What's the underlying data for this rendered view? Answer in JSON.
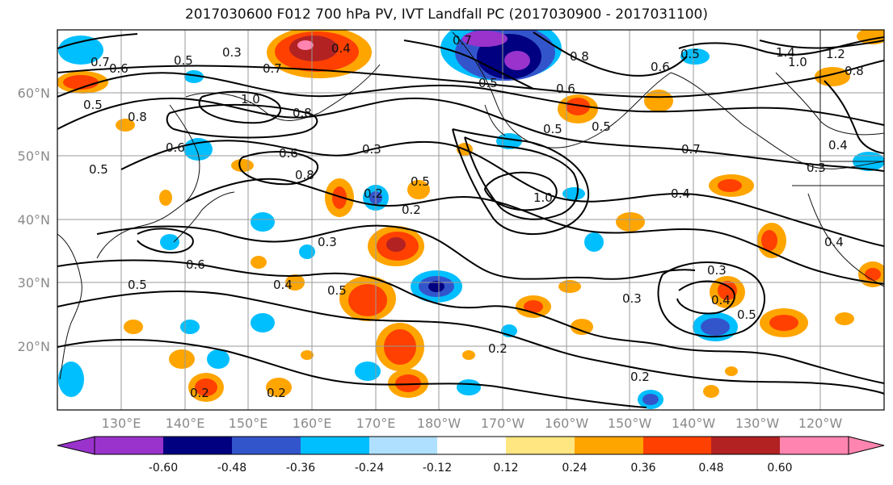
{
  "title": "2017030600 F012 700 hPa PV, IVT Landfall PC (2017030900 - 2017031100)",
  "lat_labels": [
    "60°N",
    "50°N",
    "40°N",
    "30°N",
    "20°N"
  ],
  "lon_labels": [
    "130°E",
    "140°E",
    "150°E",
    "160°E",
    "170°E",
    "180°W",
    "170°W",
    "160°W",
    "150°W",
    "140°W",
    "130°W",
    "120°W"
  ],
  "colorbar": {
    "colors": [
      "#9933cc",
      "#000080",
      "#3355cc",
      "#00bfff",
      "#b0e0ff",
      "#ffffff",
      "#ffe680",
      "#ffa500",
      "#ff4000",
      "#b22222",
      "#ff85b0"
    ],
    "tick_labels": [
      "-0.60",
      "-0.48",
      "-0.36",
      "-0.24",
      "-0.12",
      "0.12",
      "0.24",
      "0.36",
      "0.48",
      "0.60"
    ]
  },
  "contour_labels": [
    "0.7",
    "0.6",
    "0.5",
    "0.3",
    "0.7",
    "0.4",
    "0.7",
    "0.8",
    "0.6",
    "0.5",
    "1.4",
    "1.2",
    "1.0",
    "0.8",
    "0.5",
    "0.8",
    "1.0",
    "0.8",
    "0.5",
    "0.5",
    "0.6",
    "0.5",
    "0.6",
    "0.6",
    "0.4",
    "0.3",
    "0.7",
    "0.4",
    "0.3",
    "0.5",
    "0.8",
    "0.2",
    "0.2",
    "0.5",
    "1.0",
    "0.3",
    "0.4",
    "0.6",
    "0.5",
    "0.4",
    "0.5",
    "0.3",
    "0.3",
    "0.4",
    "0.5",
    "0.2",
    "0.2",
    "0.2",
    "0.2"
  ]
}
